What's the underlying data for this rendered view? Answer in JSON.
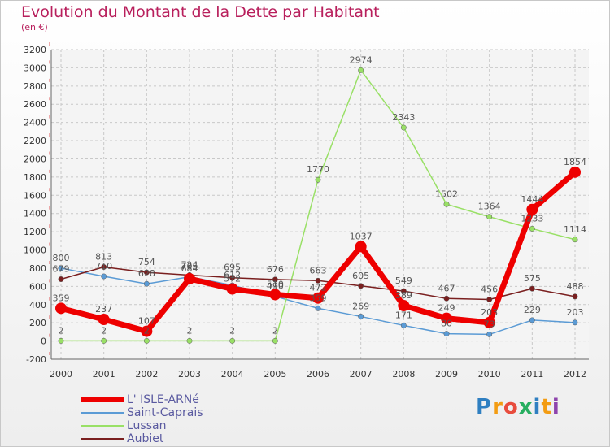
{
  "header": {
    "title": "Evolution du Montant de la Dette par Habitant",
    "subtitle": "(en €)"
  },
  "logo": {
    "text": "Proxiti",
    "colors": [
      "#2f7fc1",
      "#f39c12",
      "#e84c3d",
      "#27ae60",
      "#2f7fc1",
      "#f39c12",
      "#8e44ad"
    ]
  },
  "chart_data": {
    "type": "line",
    "title": "Evolution du Montant de la Dette par Habitant",
    "ylabel": "(en €)",
    "x": [
      "2000",
      "2001",
      "2002",
      "2003",
      "2004",
      "2005",
      "2006",
      "2007",
      "2008",
      "2009",
      "2010",
      "2011",
      "2012"
    ],
    "ylim": [
      -200,
      3200
    ],
    "yticks": [
      -200,
      0,
      200,
      400,
      600,
      800,
      1000,
      1200,
      1400,
      1600,
      1800,
      2000,
      2200,
      2400,
      2600,
      2800,
      3000,
      3200
    ],
    "grid": true,
    "legend_position": "bottom-left",
    "series": [
      {
        "name": "L' ISLE-ARNé",
        "color": "#ee0000",
        "width": 7,
        "values": [
          359,
          237,
          107,
          684,
          572,
          510,
          472,
          1037,
          389,
          249,
          203,
          1444,
          1854
        ]
      },
      {
        "name": "Saint-Caprais",
        "color": "#5b9bd5",
        "width": 1.5,
        "values": [
          800,
          710,
          628,
          705,
          612,
          490,
          359,
          269,
          171,
          80,
          73,
          229,
          203
        ]
      },
      {
        "name": "Lussan",
        "color": "#99e066",
        "width": 1.5,
        "values": [
          2,
          2,
          2,
          2,
          2,
          2,
          1770,
          2974,
          2343,
          1502,
          1364,
          1233,
          1114
        ]
      },
      {
        "name": "Aubiet",
        "color": "#7a1f1f",
        "width": 1.5,
        "values": [
          679,
          813,
          754,
          724,
          695,
          676,
          663,
          605,
          549,
          467,
          456,
          575,
          488
        ]
      }
    ],
    "data_labels": [
      [
        359,
        237,
        107,
        684,
        572,
        510,
        472,
        1037,
        389,
        249,
        203,
        1444,
        1854
      ],
      [
        800,
        710,
        628,
        705,
        612,
        490,
        359,
        269,
        171,
        80,
        73,
        229,
        203
      ],
      [
        2,
        2,
        2,
        2,
        2,
        2,
        1770,
        2974,
        2343,
        1502,
        1364,
        1233,
        1114
      ],
      [
        679,
        813,
        754,
        724,
        695,
        676,
        663,
        605,
        549,
        467,
        456,
        575,
        488
      ]
    ]
  }
}
